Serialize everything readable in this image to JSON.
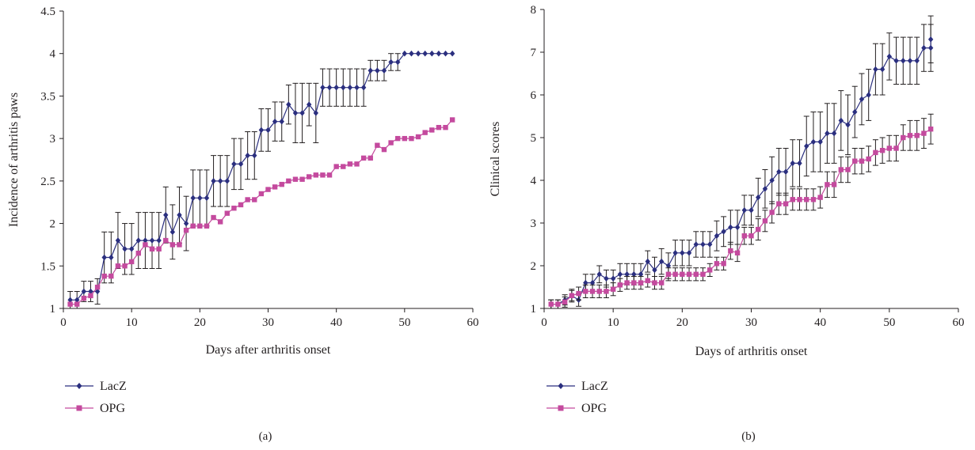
{
  "chart_data": [
    {
      "type": "line",
      "panel_label": "(a)",
      "title": "",
      "xlabel": "Days after arthritis onset",
      "ylabel": "Incidence of arthritis paws",
      "xlim": [
        0,
        60
      ],
      "ylim": [
        1,
        4.5
      ],
      "xticks": [
        0,
        10,
        20,
        30,
        40,
        50,
        60
      ],
      "yticks": [
        1,
        1.5,
        2,
        2.5,
        3,
        3.5,
        4,
        4.5
      ],
      "ytick_labels": [
        "1",
        "1.5",
        "2",
        "2.5",
        "3",
        "3.5",
        "4",
        "4.5"
      ],
      "grid": false,
      "legend_position": "bottom-left",
      "series": [
        {
          "name": "LacZ",
          "color": "#2b2f7f",
          "marker": "diamond",
          "x": [
            1,
            2,
            3,
            4,
            5,
            6,
            7,
            8,
            9,
            10,
            11,
            12,
            13,
            14,
            15,
            16,
            17,
            18,
            19,
            20,
            21,
            22,
            23,
            24,
            25,
            26,
            27,
            28,
            29,
            30,
            31,
            32,
            33,
            34,
            35,
            36,
            37,
            38,
            39,
            40,
            41,
            42,
            43,
            44,
            45,
            46,
            47,
            48,
            49,
            50,
            51,
            52,
            53,
            54,
            55,
            56,
            57
          ],
          "y": [
            1.1,
            1.1,
            1.2,
            1.2,
            1.2,
            1.6,
            1.6,
            1.8,
            1.7,
            1.7,
            1.8,
            1.8,
            1.8,
            1.8,
            2.1,
            1.9,
            2.1,
            2.0,
            2.3,
            2.3,
            2.3,
            2.5,
            2.5,
            2.5,
            2.7,
            2.7,
            2.8,
            2.8,
            3.1,
            3.1,
            3.2,
            3.2,
            3.4,
            3.3,
            3.3,
            3.4,
            3.3,
            3.6,
            3.6,
            3.6,
            3.6,
            3.6,
            3.6,
            3.6,
            3.8,
            3.8,
            3.8,
            3.9,
            3.9,
            4.0,
            4.0,
            4.0,
            4.0,
            4.0,
            4.0,
            4.0,
            4.0
          ],
          "err": [
            0.1,
            0.1,
            0.12,
            0.12,
            0.15,
            0.3,
            0.3,
            0.33,
            0.3,
            0.3,
            0.33,
            0.33,
            0.33,
            0.33,
            0.33,
            0.32,
            0.33,
            0.32,
            0.33,
            0.33,
            0.33,
            0.3,
            0.3,
            0.3,
            0.3,
            0.3,
            0.28,
            0.28,
            0.25,
            0.25,
            0.23,
            0.23,
            0.23,
            0.35,
            0.35,
            0.25,
            0.35,
            0.22,
            0.22,
            0.22,
            0.22,
            0.22,
            0.22,
            0.22,
            0.12,
            0.12,
            0.12,
            0.1,
            0.1,
            0,
            0,
            0,
            0,
            0,
            0,
            0,
            0
          ]
        },
        {
          "name": "OPG",
          "color": "#c44a9e",
          "marker": "square",
          "x": [
            1,
            2,
            3,
            4,
            5,
            6,
            7,
            8,
            9,
            10,
            11,
            12,
            13,
            14,
            15,
            16,
            17,
            18,
            19,
            20,
            21,
            22,
            23,
            24,
            25,
            26,
            27,
            28,
            29,
            30,
            31,
            32,
            33,
            34,
            35,
            36,
            37,
            38,
            39,
            40,
            41,
            42,
            43,
            44,
            45,
            46,
            47,
            48,
            49,
            50,
            51,
            52,
            53,
            54,
            55,
            56,
            57
          ],
          "y": [
            1.05,
            1.05,
            1.12,
            1.15,
            1.25,
            1.38,
            1.38,
            1.5,
            1.5,
            1.55,
            1.65,
            1.75,
            1.7,
            1.7,
            1.8,
            1.75,
            1.75,
            1.92,
            1.97,
            1.97,
            1.97,
            2.07,
            2.02,
            2.12,
            2.18,
            2.22,
            2.28,
            2.28,
            2.35,
            2.4,
            2.43,
            2.46,
            2.5,
            2.52,
            2.52,
            2.55,
            2.57,
            2.57,
            2.57,
            2.67,
            2.67,
            2.7,
            2.7,
            2.77,
            2.77,
            2.92,
            2.87,
            2.95,
            3.0,
            3.0,
            3.0,
            3.02,
            3.07,
            3.1,
            3.13,
            3.13,
            3.22
          ]
        }
      ]
    },
    {
      "type": "line",
      "panel_label": "(b)",
      "title": "",
      "xlabel": "Days of arthritis onset",
      "ylabel": "Clinical scores",
      "xlim": [
        0,
        60
      ],
      "ylim": [
        1,
        8
      ],
      "xticks": [
        0,
        10,
        20,
        30,
        40,
        50,
        60
      ],
      "yticks": [
        1,
        2,
        3,
        4,
        5,
        6,
        7,
        8
      ],
      "ytick_labels": [
        "1",
        "2",
        "3",
        "4",
        "5",
        "6",
        "7",
        "8"
      ],
      "grid": false,
      "legend_position": "bottom-left",
      "series": [
        {
          "name": "LacZ",
          "color": "#2b2f7f",
          "marker": "diamond",
          "x": [
            1,
            2,
            3,
            4,
            5,
            6,
            7,
            8,
            9,
            10,
            11,
            12,
            13,
            14,
            15,
            16,
            17,
            18,
            19,
            20,
            21,
            22,
            23,
            24,
            25,
            26,
            27,
            28,
            29,
            30,
            31,
            32,
            33,
            34,
            35,
            36,
            37,
            38,
            39,
            40,
            41,
            42,
            43,
            44,
            45,
            46,
            47,
            48,
            49,
            50,
            51,
            52,
            53,
            54,
            55,
            56,
            56
          ],
          "y": [
            1.1,
            1.1,
            1.2,
            1.3,
            1.2,
            1.6,
            1.6,
            1.8,
            1.7,
            1.7,
            1.8,
            1.8,
            1.8,
            1.8,
            2.1,
            1.9,
            2.1,
            2.0,
            2.3,
            2.3,
            2.3,
            2.5,
            2.5,
            2.5,
            2.7,
            2.8,
            2.9,
            2.9,
            3.3,
            3.3,
            3.6,
            3.8,
            4.0,
            4.2,
            4.2,
            4.4,
            4.4,
            4.8,
            4.9,
            4.9,
            5.1,
            5.1,
            5.4,
            5.3,
            5.6,
            5.9,
            6.0,
            6.6,
            6.6,
            6.9,
            6.8,
            6.8,
            6.8,
            6.8,
            7.1,
            7.1,
            7.3
          ],
          "err": [
            0.1,
            0.1,
            0.12,
            0.12,
            0.15,
            0.2,
            0.2,
            0.2,
            0.2,
            0.2,
            0.25,
            0.25,
            0.25,
            0.25,
            0.25,
            0.3,
            0.3,
            0.3,
            0.3,
            0.3,
            0.3,
            0.3,
            0.3,
            0.3,
            0.35,
            0.35,
            0.4,
            0.4,
            0.35,
            0.35,
            0.45,
            0.45,
            0.55,
            0.55,
            0.55,
            0.55,
            0.55,
            0.7,
            0.7,
            0.7,
            0.7,
            0.7,
            0.7,
            0.7,
            0.6,
            0.6,
            0.6,
            0.6,
            0.6,
            0.55,
            0.55,
            0.55,
            0.55,
            0.55,
            0.55,
            0.55,
            0.55
          ]
        },
        {
          "name": "OPG",
          "color": "#c44a9e",
          "marker": "square",
          "x": [
            1,
            2,
            3,
            4,
            5,
            6,
            7,
            8,
            9,
            10,
            11,
            12,
            13,
            14,
            15,
            16,
            17,
            18,
            19,
            20,
            21,
            22,
            23,
            24,
            25,
            26,
            27,
            28,
            29,
            30,
            31,
            32,
            33,
            34,
            35,
            36,
            37,
            38,
            39,
            40,
            41,
            42,
            43,
            44,
            45,
            46,
            47,
            48,
            49,
            50,
            51,
            52,
            53,
            54,
            55,
            56
          ],
          "y": [
            1.1,
            1.1,
            1.15,
            1.3,
            1.35,
            1.4,
            1.4,
            1.4,
            1.4,
            1.45,
            1.55,
            1.6,
            1.6,
            1.6,
            1.65,
            1.6,
            1.6,
            1.8,
            1.8,
            1.8,
            1.8,
            1.8,
            1.8,
            1.9,
            2.05,
            2.05,
            2.35,
            2.3,
            2.7,
            2.7,
            2.85,
            3.05,
            3.25,
            3.45,
            3.45,
            3.55,
            3.55,
            3.55,
            3.55,
            3.6,
            3.9,
            3.9,
            4.25,
            4.25,
            4.45,
            4.45,
            4.5,
            4.65,
            4.7,
            4.75,
            4.75,
            5.0,
            5.05,
            5.05,
            5.1,
            5.2
          ],
          "err": [
            0.1,
            0.1,
            0.12,
            0.15,
            0.15,
            0.15,
            0.15,
            0.15,
            0.15,
            0.15,
            0.15,
            0.15,
            0.15,
            0.15,
            0.15,
            0.15,
            0.15,
            0.15,
            0.15,
            0.15,
            0.15,
            0.15,
            0.15,
            0.15,
            0.15,
            0.15,
            0.2,
            0.2,
            0.2,
            0.2,
            0.25,
            0.25,
            0.25,
            0.25,
            0.25,
            0.25,
            0.25,
            0.25,
            0.25,
            0.25,
            0.3,
            0.3,
            0.3,
            0.3,
            0.3,
            0.3,
            0.3,
            0.3,
            0.3,
            0.3,
            0.3,
            0.3,
            0.35,
            0.35,
            0.35,
            0.35
          ]
        }
      ]
    }
  ]
}
